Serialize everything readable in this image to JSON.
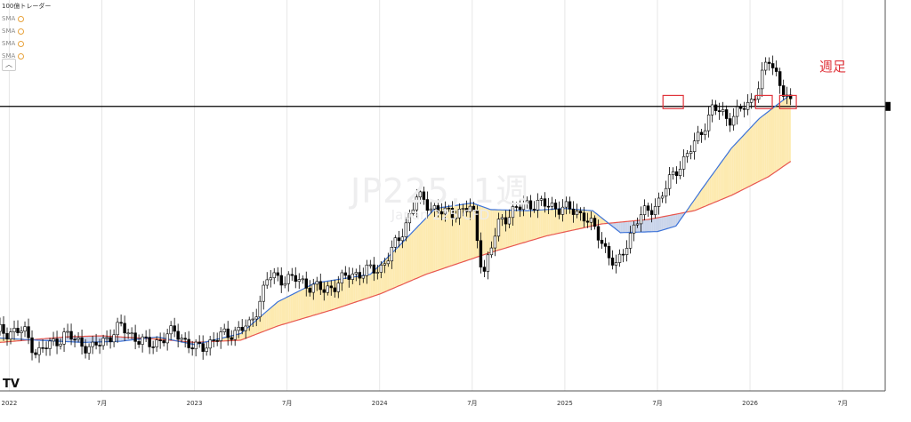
{
  "legend": {
    "title": "100億トレーダー",
    "sma_labels": [
      "SMA",
      "SMA",
      "SMA",
      "SMA"
    ],
    "collapse_icon": "chevron-up-icon"
  },
  "watermark": {
    "symbol": "JP225, 1週",
    "description": "Japan 225 CFD"
  },
  "annotation": "週足",
  "logo": "TV",
  "colors": {
    "candle_up_fill": "#ffffff",
    "candle_down_fill": "#000000",
    "candle_outline": "#000000",
    "sma_fast": "#3d73d8",
    "sma_slow": "#e8574f",
    "fill_bull": "#fdeab0",
    "fill_bear": "#c9d4ea",
    "price_line": "#000000",
    "highlight_box": "#e0343b"
  },
  "chart_data": {
    "type": "candlestick",
    "x_axis_labels": [
      "2022",
      "7月",
      "2023",
      "7月",
      "2024",
      "7月",
      "2025",
      "7月",
      "2026",
      "7月"
    ],
    "y_axis": {
      "labels_shown": false,
      "approx_range": [
        24000,
        55000
      ]
    },
    "horizontal_line": {
      "value": 48300
    },
    "sma_fast": {
      "points": [
        [
          2021.95,
          27200
        ],
        [
          2022.15,
          27000
        ],
        [
          2022.4,
          26800
        ],
        [
          2022.6,
          26900
        ],
        [
          2022.8,
          27300
        ],
        [
          2023.0,
          26600
        ],
        [
          2023.25,
          27600
        ],
        [
          2023.45,
          30500
        ],
        [
          2023.65,
          32200
        ],
        [
          2023.95,
          33000
        ],
        [
          2024.1,
          35500
        ],
        [
          2024.3,
          39000
        ],
        [
          2024.5,
          39500
        ],
        [
          2024.6,
          38900
        ],
        [
          2024.8,
          38800
        ],
        [
          2025.0,
          39000
        ],
        [
          2025.15,
          38800
        ],
        [
          2025.3,
          36800
        ],
        [
          2025.5,
          36900
        ],
        [
          2025.6,
          37400
        ],
        [
          2025.75,
          41000
        ],
        [
          2025.9,
          44500
        ],
        [
          2026.05,
          47200
        ],
        [
          2026.22,
          49400
        ]
      ]
    },
    "sma_slow": {
      "points": [
        [
          2021.95,
          26800
        ],
        [
          2022.3,
          27300
        ],
        [
          2022.5,
          27400
        ],
        [
          2022.8,
          27100
        ],
        [
          2023.0,
          26800
        ],
        [
          2023.25,
          27000
        ],
        [
          2023.45,
          28300
        ],
        [
          2023.75,
          29800
        ],
        [
          2024.0,
          31200
        ],
        [
          2024.25,
          33000
        ],
        [
          2024.6,
          35000
        ],
        [
          2024.9,
          36500
        ],
        [
          2025.2,
          37600
        ],
        [
          2025.45,
          38000
        ],
        [
          2025.7,
          38800
        ],
        [
          2025.9,
          40200
        ],
        [
          2026.1,
          41900
        ],
        [
          2026.22,
          43300
        ]
      ]
    },
    "highlight_boxes": [
      {
        "x": [
          2025.53,
          2025.64
        ],
        "y": [
          48100,
          49300
        ]
      },
      {
        "x": [
          2026.03,
          2026.12
        ],
        "y": [
          48100,
          49300
        ]
      },
      {
        "x": [
          2026.16,
          2026.25
        ],
        "y": [
          48100,
          49300
        ]
      }
    ],
    "ohlc_keypoints": [
      [
        2021.95,
        27800
      ],
      [
        2022.08,
        27800
      ],
      [
        2022.15,
        25800
      ],
      [
        2022.3,
        27500
      ],
      [
        2022.45,
        26200
      ],
      [
        2022.6,
        28200
      ],
      [
        2022.75,
        26500
      ],
      [
        2022.9,
        27800
      ],
      [
        2023.0,
        26100
      ],
      [
        2023.15,
        27400
      ],
      [
        2023.3,
        28300
      ],
      [
        2023.4,
        32800
      ],
      [
        2023.55,
        32500
      ],
      [
        2023.7,
        31500
      ],
      [
        2023.85,
        33000
      ],
      [
        2024.0,
        33500
      ],
      [
        2024.1,
        36000
      ],
      [
        2024.2,
        40000
      ],
      [
        2024.35,
        38500
      ],
      [
        2024.5,
        39000
      ],
      [
        2024.56,
        33000
      ],
      [
        2024.65,
        38000
      ],
      [
        2024.8,
        39500
      ],
      [
        2024.95,
        39200
      ],
      [
        2025.1,
        38500
      ],
      [
        2025.2,
        36000
      ],
      [
        2025.28,
        33500
      ],
      [
        2025.38,
        37800
      ],
      [
        2025.5,
        39500
      ],
      [
        2025.6,
        42500
      ],
      [
        2025.7,
        44800
      ],
      [
        2025.8,
        48200
      ],
      [
        2025.88,
        47200
      ],
      [
        2026.0,
        48500
      ],
      [
        2026.1,
        52500
      ],
      [
        2026.15,
        51000
      ],
      [
        2026.22,
        48300
      ]
    ],
    "grid": true,
    "legend_position": "top-left"
  }
}
